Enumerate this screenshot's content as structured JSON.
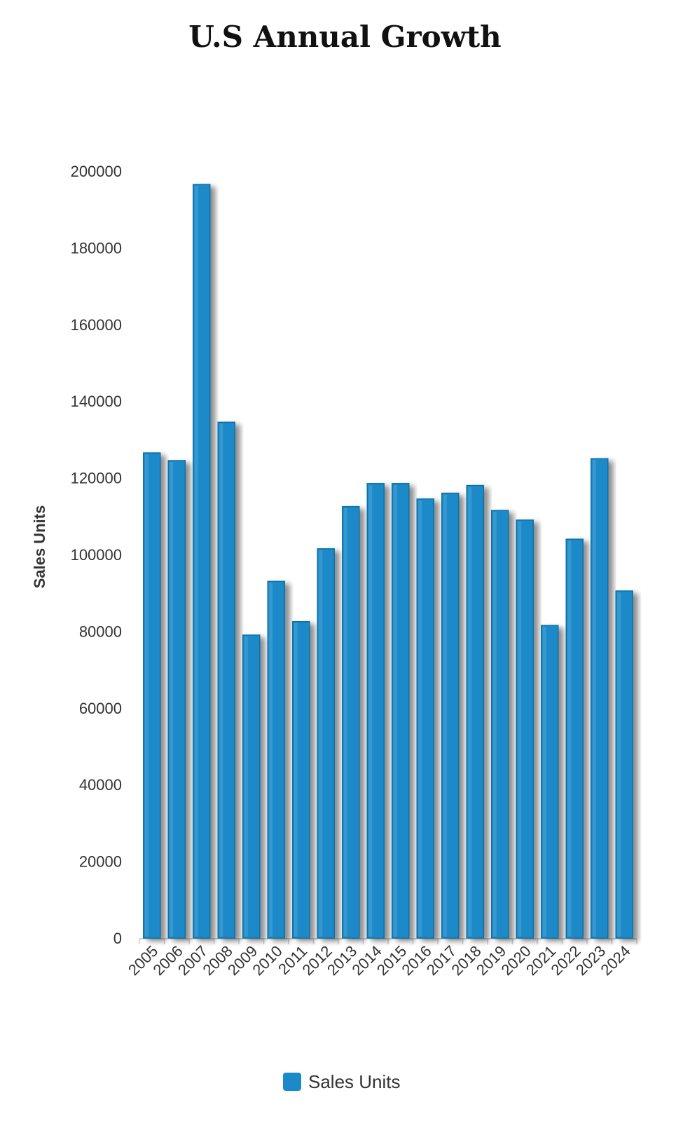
{
  "chart_data": {
    "type": "bar",
    "title": "U.S Annual Growth",
    "ylabel": "Sales Units",
    "xlabel": "",
    "ylim": [
      0,
      200000
    ],
    "yticks": [
      0,
      20000,
      40000,
      60000,
      80000,
      100000,
      120000,
      140000,
      160000,
      180000,
      200000
    ],
    "grid": false,
    "legend_position": "bottom",
    "categories": [
      "2005",
      "2006",
      "2007",
      "2008",
      "2009",
      "2010",
      "2011",
      "2012",
      "2013",
      "2014",
      "2015",
      "2016",
      "2017",
      "2018",
      "2019",
      "2020",
      "2021",
      "2022",
      "2023",
      "2024"
    ],
    "series": [
      {
        "name": "Sales Units",
        "color": "#1a8ac9",
        "values": [
          126500,
          124500,
          196500,
          134500,
          79000,
          93000,
          82500,
          101500,
          112500,
          118500,
          118500,
          114500,
          116000,
          118000,
          111500,
          109000,
          81500,
          104000,
          125000,
          90500
        ]
      }
    ]
  }
}
